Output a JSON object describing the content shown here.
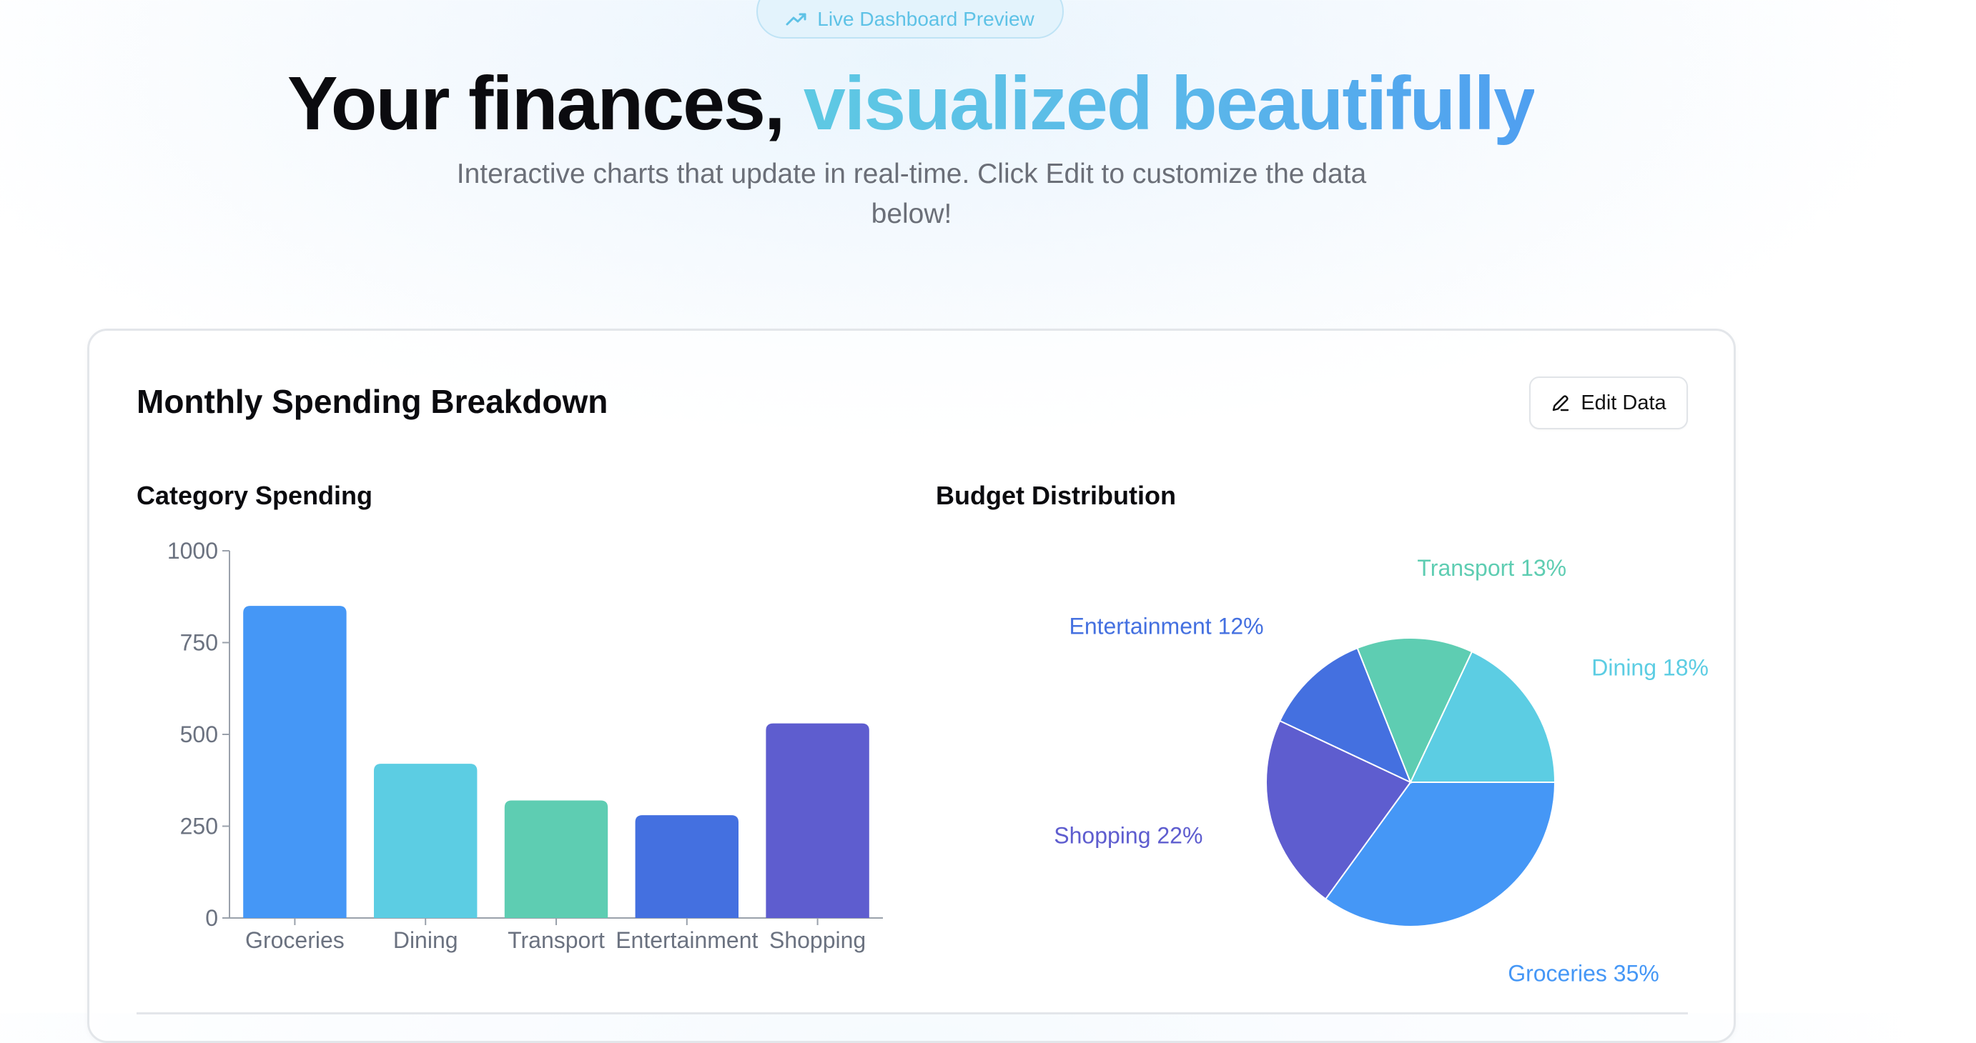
{
  "badge": {
    "label": "Live Dashboard Preview",
    "icon": "trending-up-icon"
  },
  "hero": {
    "title_plain": "Your finances, ",
    "title_accent": "visualized beautifully",
    "subtitle": "Interactive charts that update in real-time. Click Edit to customize the data below!"
  },
  "card": {
    "title": "Monthly Spending Breakdown",
    "edit_button": {
      "label": "Edit Data",
      "icon": "pencil-icon"
    }
  },
  "colors": {
    "accent_start": "#5ec9e3",
    "accent_end": "#4f9ff0",
    "badge_text": "#5ec2e6"
  },
  "charts": {
    "bar_title": "Category Spending",
    "pie_title": "Budget Distribution"
  },
  "chart_data": [
    {
      "type": "bar",
      "title": "Category Spending",
      "categories": [
        "Groceries",
        "Dining",
        "Transport",
        "Entertainment",
        "Shopping"
      ],
      "values": [
        850,
        420,
        320,
        280,
        530
      ],
      "colors": [
        "#4597f6",
        "#5ccde3",
        "#5ecdb2",
        "#4470e0",
        "#5e5dcf"
      ],
      "yticks": [
        0,
        250,
        500,
        750,
        1000
      ],
      "ylim": [
        0,
        1000
      ],
      "grid": false
    },
    {
      "type": "pie",
      "title": "Budget Distribution",
      "slices": [
        {
          "label": "Groceries",
          "percent": 35,
          "color": "#4597f6"
        },
        {
          "label": "Shopping",
          "percent": 22,
          "color": "#5e5dcf"
        },
        {
          "label": "Entertainment",
          "percent": 12,
          "color": "#4470e0"
        },
        {
          "label": "Transport",
          "percent": 13,
          "color": "#5ecdb2"
        },
        {
          "label": "Dining",
          "percent": 18,
          "color": "#5ccde3"
        }
      ]
    }
  ]
}
